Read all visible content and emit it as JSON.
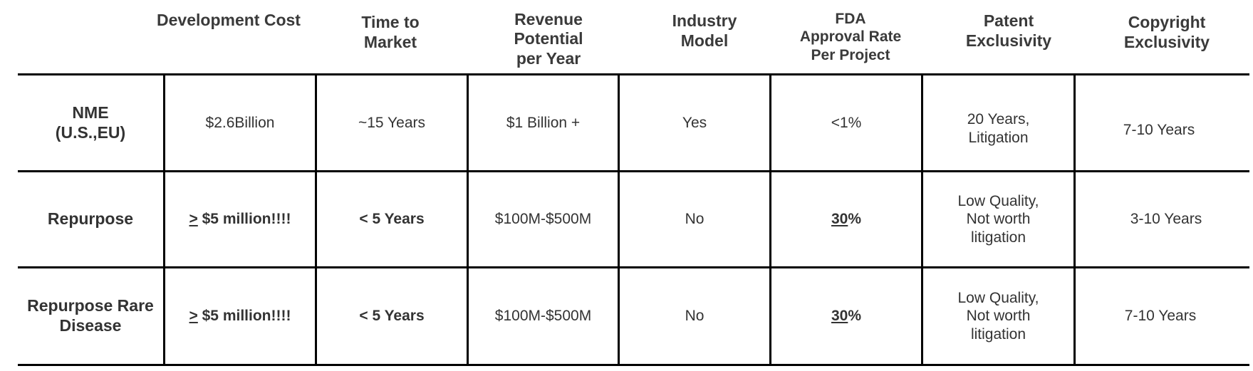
{
  "table": {
    "headers": [
      "Development Cost",
      "Time to\nMarket",
      "Revenue\nPotential\nper Year",
      "Industry\nModel",
      "FDA\nApproval Rate\nPer Project",
      "Patent\nExclusivity",
      "Copyright\nExclusivity"
    ],
    "rows": [
      {
        "label": "NME\n(U.S.,EU)",
        "dev_cost": "$2.6Billion",
        "time_to_market": "~15 Years",
        "revenue": "$1 Billion +",
        "industry_model": "Yes",
        "fda_rate": "<1%",
        "patent": "20 Years,\nLitigation",
        "copyright": "7-10 Years"
      },
      {
        "label": "Repurpose",
        "dev_cost_symbol": ">",
        "dev_cost_rest": " $5 million!!!!",
        "time_to_market": "< 5 Years",
        "revenue": "$100M-$500M",
        "industry_model": "No",
        "fda_rate_num": "30",
        "fda_rate_pct": "%",
        "patent": "Low Quality,\nNot worth\nlitigation",
        "copyright": "3-10 Years"
      },
      {
        "label": "Repurpose Rare\nDisease",
        "dev_cost_symbol": ">",
        "dev_cost_rest": " $5 million!!!!",
        "time_to_market": "< 5 Years",
        "revenue": "$100M-$500M",
        "industry_model": "No",
        "fda_rate_num": "30",
        "fda_rate_pct": "%",
        "patent": "Low Quality,\nNot worth\nlitigation",
        "copyright": "7-10 Years"
      }
    ]
  }
}
